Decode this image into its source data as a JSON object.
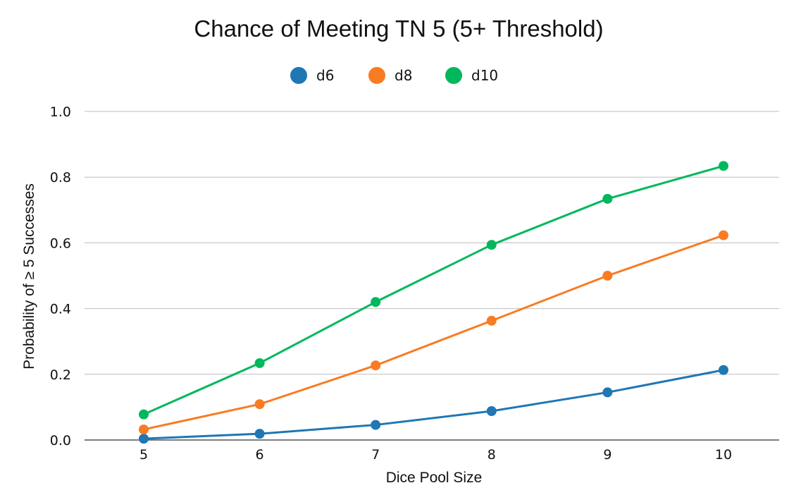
{
  "chart_data": {
    "type": "line",
    "title": "Chance of Meeting TN 5 (5+ Threshold)",
    "xlabel": "Dice Pool Size",
    "ylabel": "Probability of ≥ 5 Successes",
    "x": [
      5,
      6,
      7,
      8,
      9,
      10
    ],
    "x_tick_labels": [
      "5",
      "6",
      "7",
      "8",
      "9",
      "10"
    ],
    "ylim": [
      0,
      1
    ],
    "y_ticks": [
      0,
      0.2,
      0.4,
      0.6,
      0.8,
      1.0
    ],
    "y_tick_labels": [
      "0.0",
      "0.2",
      "0.4",
      "0.6",
      "0.8",
      "1.0"
    ],
    "grid": "horizontal",
    "legend_position": "top-center",
    "series": [
      {
        "name": "d6",
        "color": "#1f77b4",
        "values": [
          0.004,
          0.019,
          0.046,
          0.088,
          0.145,
          0.213
        ]
      },
      {
        "name": "d8",
        "color": "#f97b22",
        "values": [
          0.032,
          0.109,
          0.227,
          0.363,
          0.5,
          0.623
        ]
      },
      {
        "name": "d10",
        "color": "#00b85c",
        "values": [
          0.078,
          0.234,
          0.42,
          0.594,
          0.734,
          0.834
        ]
      }
    ]
  }
}
